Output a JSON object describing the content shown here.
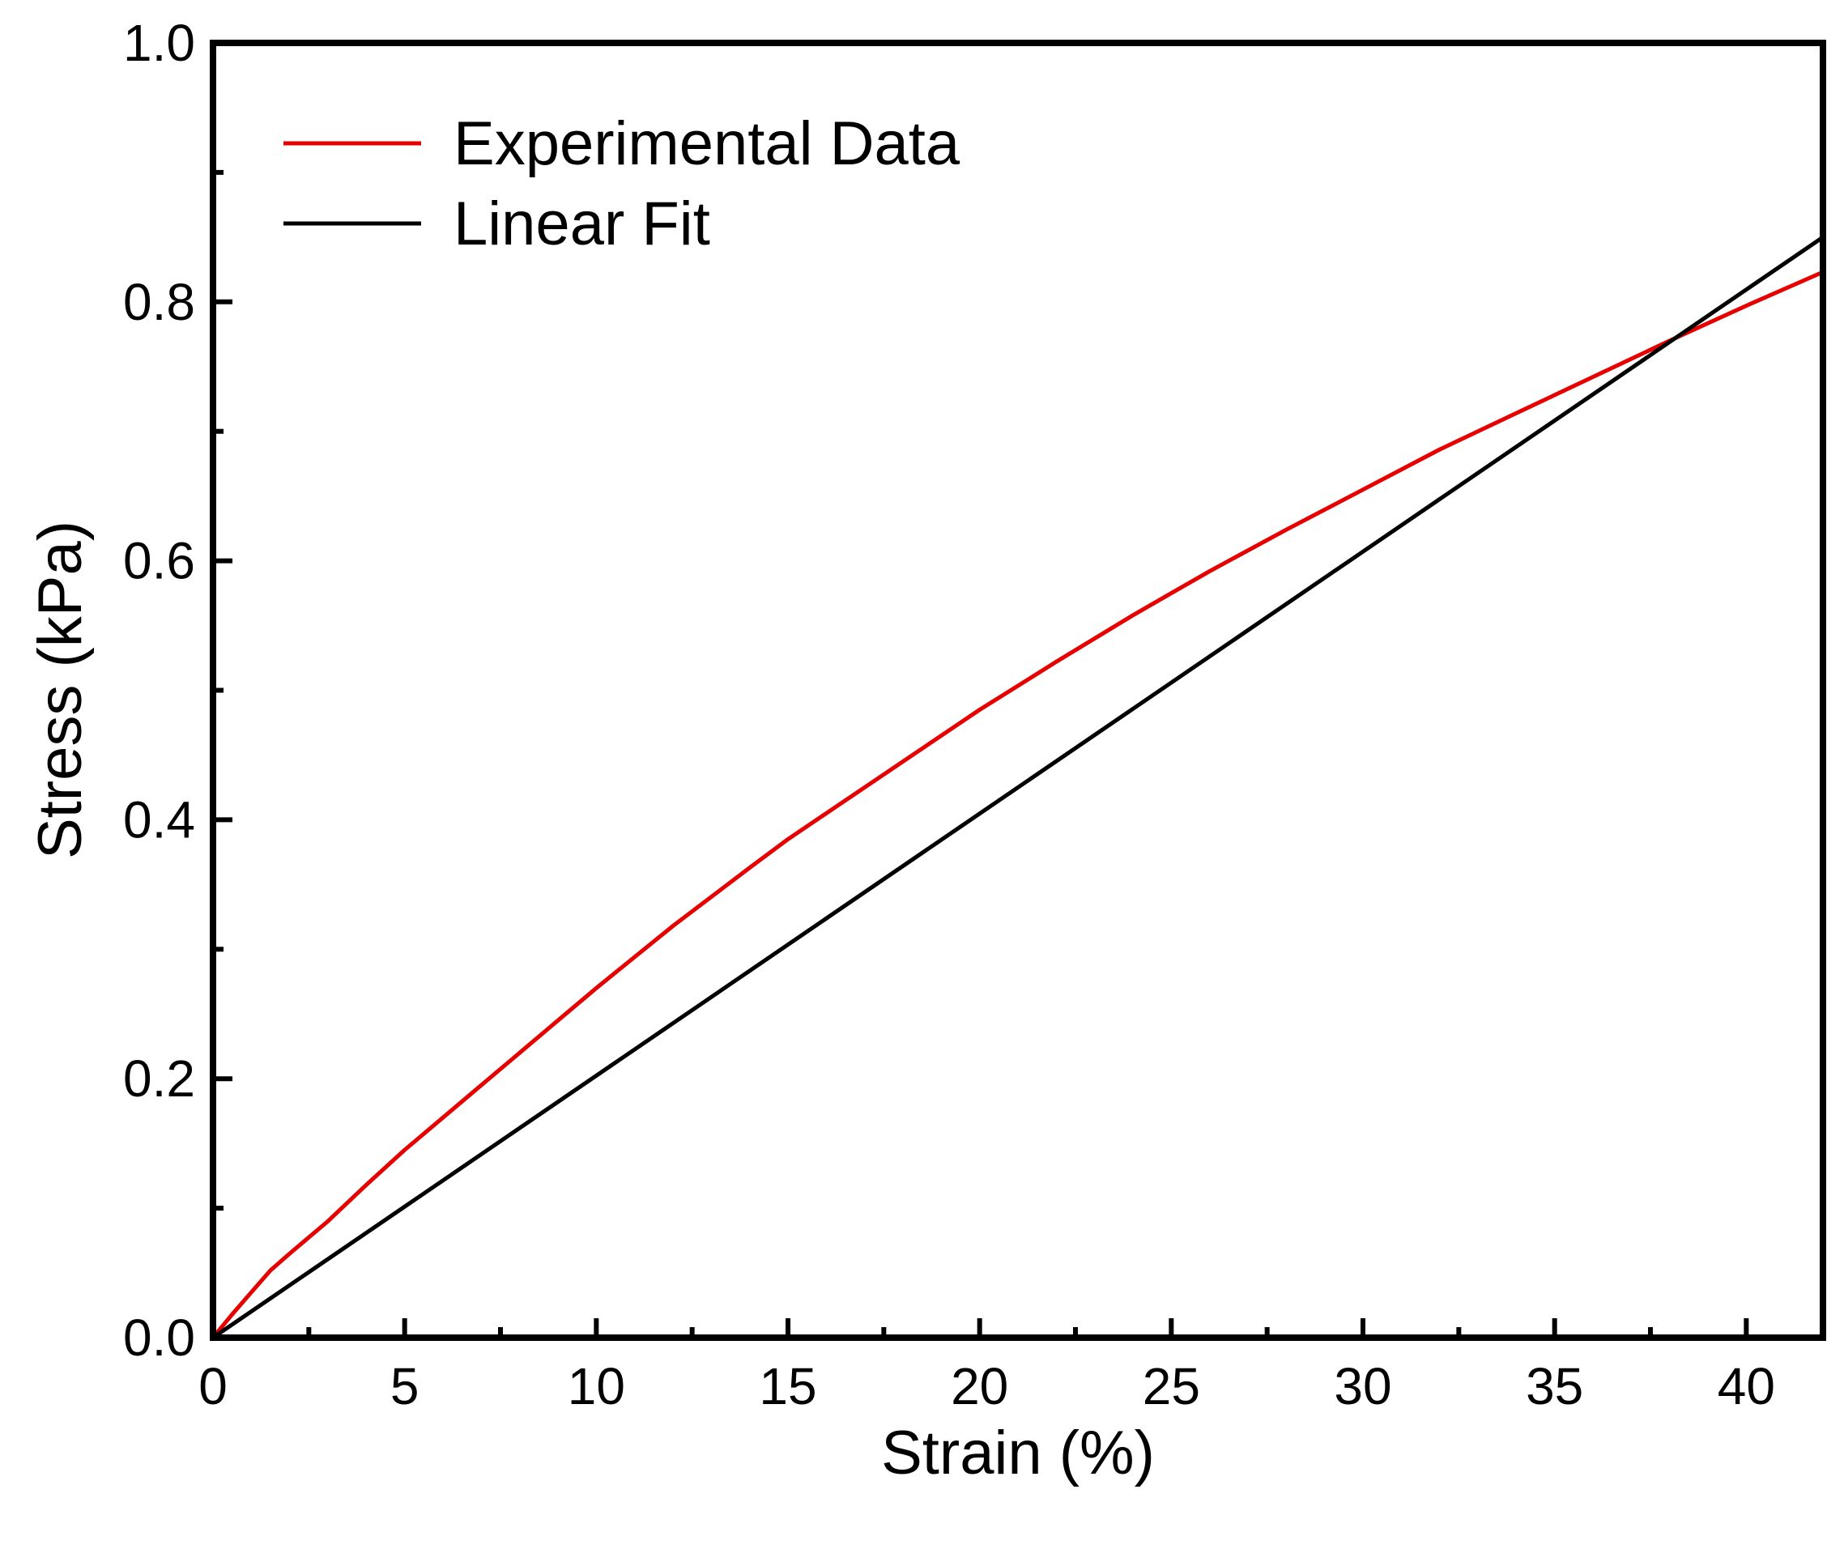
{
  "chart_data": {
    "type": "line",
    "title": "",
    "xlabel": "Strain (%)",
    "ylabel": "Stress (kPa)",
    "xlim": [
      0,
      42
    ],
    "ylim": [
      0,
      1.0
    ],
    "x_ticks": [
      0,
      5,
      10,
      15,
      20,
      25,
      30,
      35,
      40
    ],
    "x_tick_labels": [
      "0",
      "5",
      "10",
      "15",
      "20",
      "25",
      "30",
      "35",
      "40"
    ],
    "x_minor_ticks": [
      2.5,
      7.5,
      12.5,
      17.5,
      22.5,
      27.5,
      32.5,
      37.5
    ],
    "y_ticks": [
      0.0,
      0.2,
      0.4,
      0.6,
      0.8,
      1.0
    ],
    "y_tick_labels": [
      "0.0",
      "0.2",
      "0.4",
      "0.6",
      "0.8",
      "1.0"
    ],
    "y_minor_ticks": [
      0.1,
      0.3,
      0.5,
      0.7,
      0.9
    ],
    "grid": false,
    "legend_position": "top-left",
    "series": [
      {
        "name": "Experimental Data",
        "color": "#e60000",
        "x": [
          0,
          0.5,
          1.0,
          1.5,
          2.0,
          3,
          4,
          5,
          6,
          7,
          8,
          9,
          10,
          12,
          14,
          15,
          16,
          18,
          20,
          22,
          24,
          25,
          26,
          28,
          30,
          32,
          34,
          35,
          36,
          38,
          40,
          42
        ],
        "y": [
          0,
          0.018,
          0.035,
          0.052,
          0.065,
          0.09,
          0.118,
          0.145,
          0.17,
          0.195,
          0.22,
          0.245,
          0.27,
          0.318,
          0.363,
          0.385,
          0.405,
          0.445,
          0.485,
          0.522,
          0.558,
          0.575,
          0.592,
          0.624,
          0.655,
          0.686,
          0.714,
          0.728,
          0.742,
          0.77,
          0.797,
          0.823
        ]
      },
      {
        "name": "Linear Fit",
        "color": "#000000",
        "x": [
          0,
          42
        ],
        "y": [
          0,
          0.85
        ]
      }
    ]
  }
}
